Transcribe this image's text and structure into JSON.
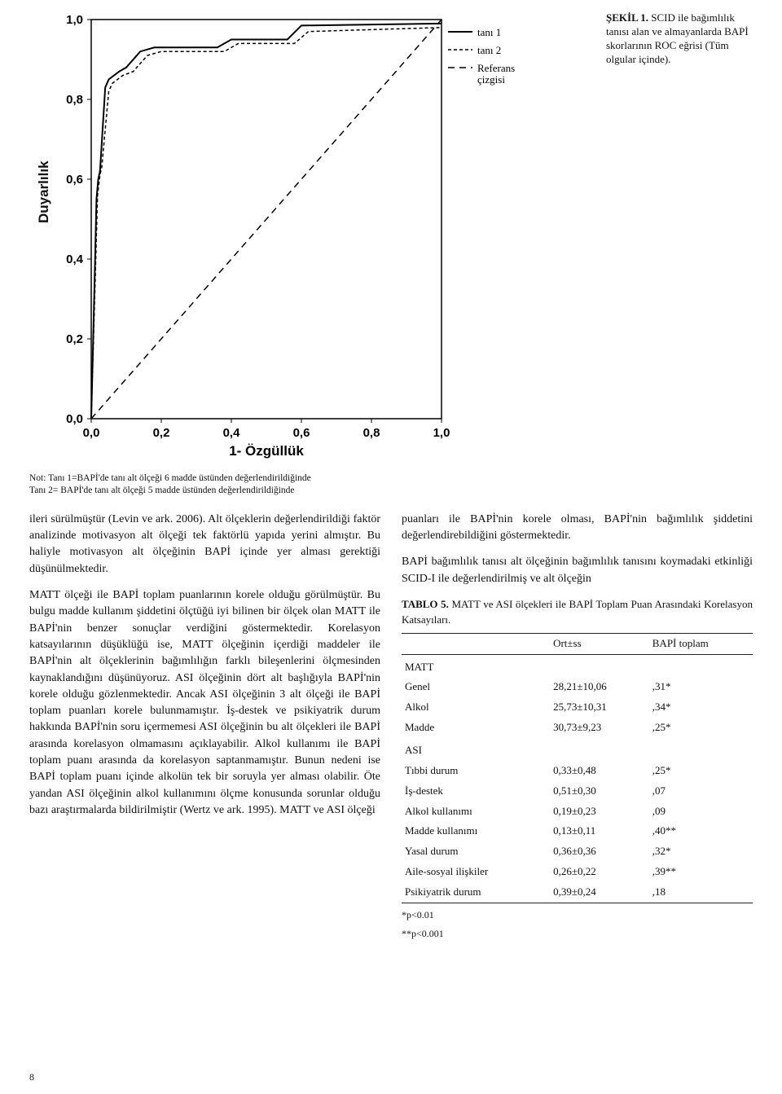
{
  "figure": {
    "caption_title": "ŞEKİL 1.",
    "caption_text": "SCID ile bağımlılık tanısı alan ve almayanlarda BAPİ skorlarının ROC eğrisi (Tüm olgular içinde).",
    "ylabel": "Duyarlılık",
    "xlabel": "1- Özgüllük",
    "yticks": [
      "0,0",
      "0,2",
      "0,4",
      "0,6",
      "0,8",
      "1,0"
    ],
    "xticks": [
      "0,0",
      "0,2",
      "0,4",
      "0,6",
      "0,8",
      "1,0"
    ],
    "legend": {
      "t1": "tanı 1",
      "t2": "tanı 2",
      "ref": "Referans çizgisi"
    },
    "xlim": [
      0,
      1
    ],
    "ylim": [
      0,
      1
    ],
    "series": {
      "tani1": [
        [
          0,
          0
        ],
        [
          0.01,
          0.36
        ],
        [
          0.015,
          0.55
        ],
        [
          0.02,
          0.6
        ],
        [
          0.025,
          0.62
        ],
        [
          0.04,
          0.83
        ],
        [
          0.05,
          0.85
        ],
        [
          0.08,
          0.87
        ],
        [
          0.1,
          0.88
        ],
        [
          0.14,
          0.92
        ],
        [
          0.18,
          0.93
        ],
        [
          0.36,
          0.93
        ],
        [
          0.4,
          0.95
        ],
        [
          0.56,
          0.95
        ],
        [
          0.6,
          0.985
        ],
        [
          1.0,
          0.99
        ]
      ],
      "tani2": [
        [
          0,
          0
        ],
        [
          0.012,
          0.37
        ],
        [
          0.018,
          0.56
        ],
        [
          0.025,
          0.61
        ],
        [
          0.03,
          0.63
        ],
        [
          0.05,
          0.82
        ],
        [
          0.06,
          0.84
        ],
        [
          0.09,
          0.86
        ],
        [
          0.12,
          0.87
        ],
        [
          0.16,
          0.91
        ],
        [
          0.2,
          0.92
        ],
        [
          0.38,
          0.92
        ],
        [
          0.42,
          0.94
        ],
        [
          0.58,
          0.94
        ],
        [
          0.62,
          0.97
        ],
        [
          1.0,
          0.98
        ]
      ],
      "ref": [
        [
          0,
          0
        ],
        [
          1,
          1
        ]
      ]
    },
    "style": {
      "frame_stroke": "#000",
      "frame_w": 1.5,
      "tani1_stroke": "#000",
      "tani1_w": 2,
      "tani1_dash": "",
      "tani2_stroke": "#000",
      "tani2_w": 1.5,
      "tani2_dash": "4 3",
      "ref_stroke": "#000",
      "ref_w": 1.5,
      "ref_dash": "8 6"
    }
  },
  "note": {
    "l1": "Not: Tanı 1=BAPİ'de tanı alt ölçeği 6 madde üstünden değerlendirildiğinde",
    "l2": "Tanı 2= BAPİ'de tanı alt ölçeği 5 madde üstünden değerlendirildiğinde"
  },
  "body": {
    "p1": "ileri sürülmüştür (Levin ve ark. 2006). Alt ölçeklerin değerlendirildiği faktör analizinde motivasyon alt ölçeği tek faktörlü yapıda yerini almıştır. Bu haliyle motivasyon alt ölçeğinin BAPİ içinde yer alması gerektiği düşünülmektedir.",
    "p2": "MATT ölçeği ile BAPİ toplam puanlarının korele olduğu görülmüştür. Bu bulgu madde kullanım şiddetini ölçtüğü iyi bilinen bir ölçek olan MATT ile BAPİ'nin benzer sonuçlar verdiğini göstermektedir. Korelasyon katsayılarının düşüklüğü ise, MATT ölçeğinin içerdiği maddeler ile BAPİ'nin alt ölçeklerinin bağımlılığın farklı bileşenlerini ölçmesinden kaynaklandığını düşünüyoruz. ASI ölçeğinin dört alt başlığıyla BAPİ'nin korele olduğu gözlenmektedir. Ancak ASI ölçeğinin 3 alt ölçeği ile BAPİ toplam puanları korele bulunmamıştır. İş-destek ve psikiyatrik durum hakkında BAPİ'nin soru içermemesi ASI ölçeğinin bu alt ölçekleri ile BAPİ arasında korelasyon olmamasını açıklayabilir. Alkol kullanımı ile BAPİ toplam puanı arasında da korelasyon saptanmamıştır. Bunun nedeni ise BAPİ toplam puanı içinde alkolün tek bir soruyla yer alması olabilir. Öte yandan ASI ölçeğinin alkol kullanımını ölçme konusunda sorunlar olduğu bazı araştırmalarda bildirilmiştir (Wertz ve ark. 1995). MATT ve ASI ölçeği",
    "p3": "puanları ile BAPİ'nin korele olması, BAPİ'nin bağımlılık şiddetini değerlendirebildiğini göstermektedir.",
    "p4": "BAPİ bağımlılık tanısı alt ölçeğinin bağımlılık tanısını koymadaki etkinliği SCID-I ile değerlendirilmiş ve alt ölçeğin"
  },
  "table": {
    "caption_bold": "TABLO 5.",
    "caption_rest": "MATT ve ASI ölçekleri ile BAPİ Toplam Puan Arasındaki Korelasyon Katsayıları.",
    "headers": {
      "c2": "Ort±ss",
      "c3": "BAPİ toplam"
    },
    "sections": {
      "s1": "MATT",
      "s2": "ASI"
    },
    "rows": {
      "r1": {
        "name": "Genel",
        "m": "28,21±10,06",
        "r": ",31*"
      },
      "r2": {
        "name": "Alkol",
        "m": "25,73±10,31",
        "r": ",34*"
      },
      "r3": {
        "name": "Madde",
        "m": "30,73±9,23",
        "r": ",25*"
      },
      "r4": {
        "name": "Tıbbi durum",
        "m": "0,33±0,48",
        "r": ",25*"
      },
      "r5": {
        "name": "İş-destek",
        "m": "0,51±0,30",
        "r": ",07"
      },
      "r6": {
        "name": "Alkol kullanımı",
        "m": "0,19±0,23",
        "r": ",09"
      },
      "r7": {
        "name": "Madde kullanımı",
        "m": "0,13±0,11",
        "r": ",40**"
      },
      "r8": {
        "name": "Yasal durum",
        "m": "0,36±0,36",
        "r": ",32*"
      },
      "r9": {
        "name": "Aile-sosyal ilişkiler",
        "m": "0,26±0,22",
        "r": ",39**"
      },
      "r10": {
        "name": "Psikiyatrik  durum",
        "m": "0,39±0,24",
        "r": ",18"
      }
    },
    "sig1": "*p<0.01",
    "sig2": "**p<0.001"
  },
  "pagenum": "8"
}
